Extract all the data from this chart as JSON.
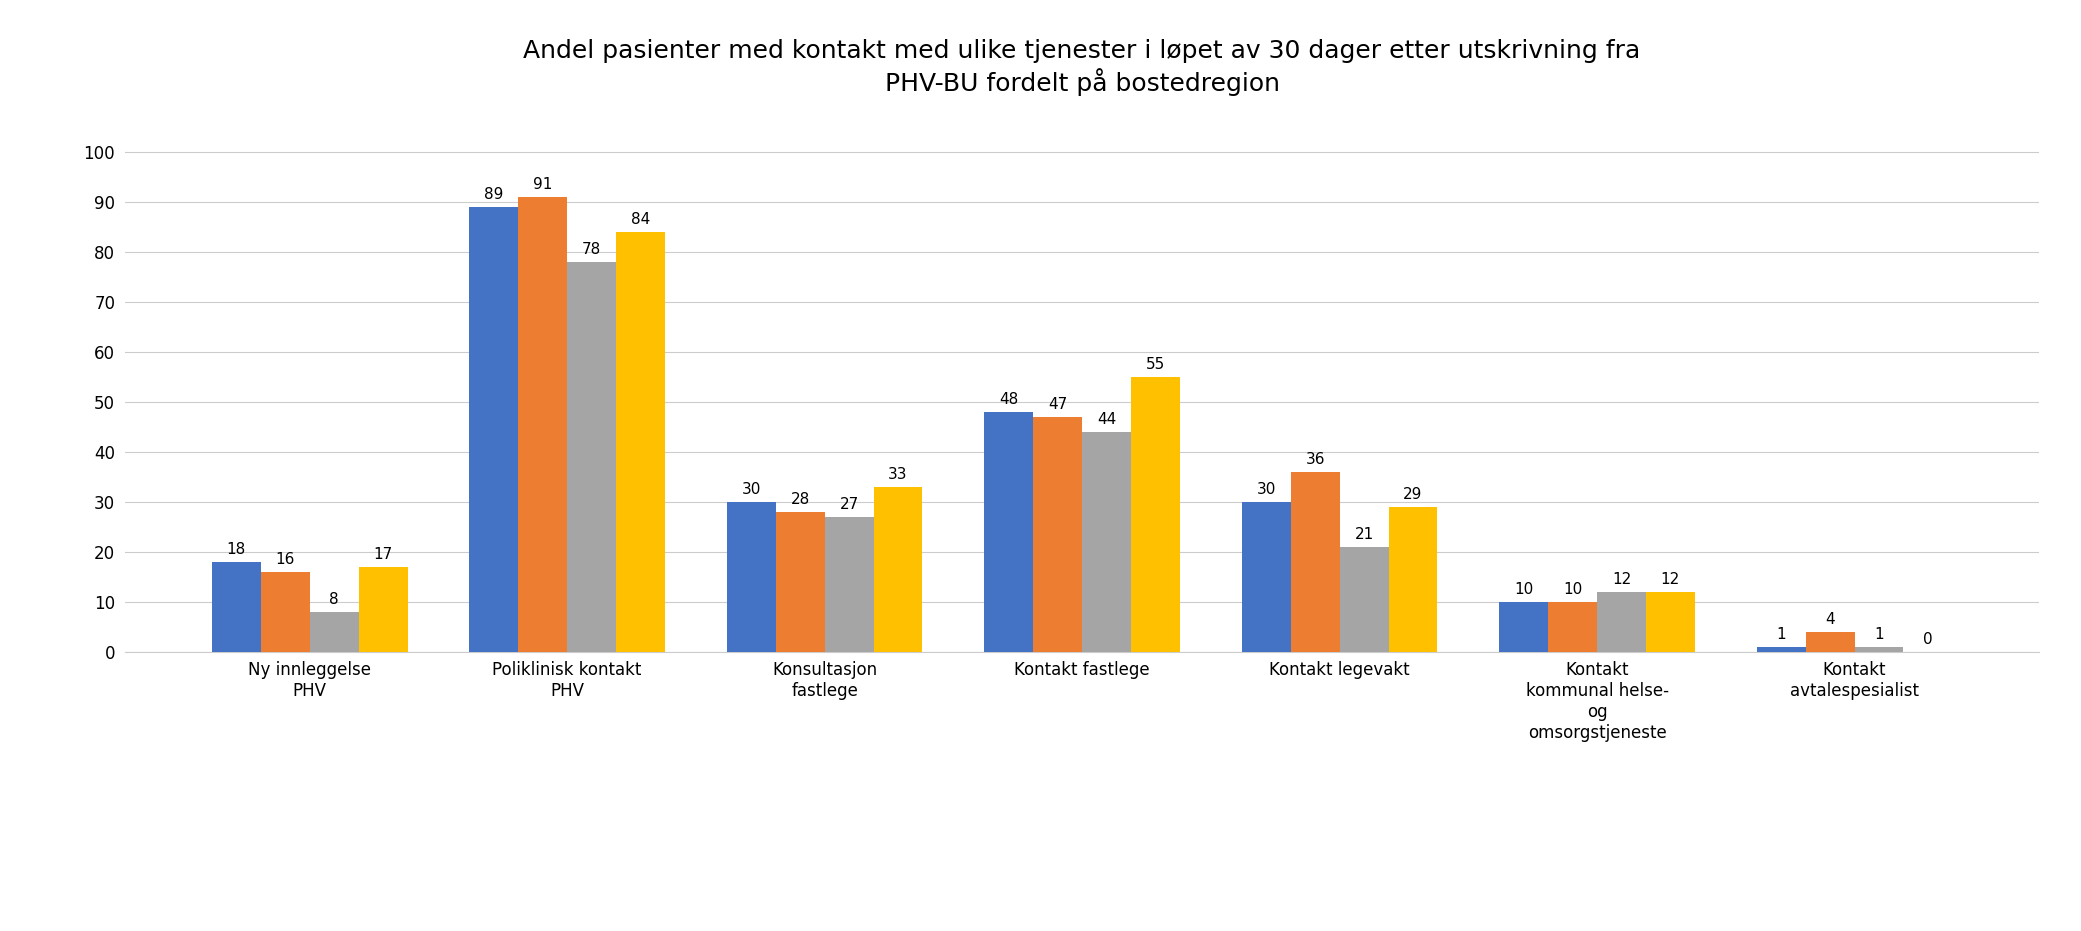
{
  "title": "Andel pasienter med kontakt med ulike tjenester i løpet av 30 dager etter utskrivning fra\nPHV-BU fordelt på bostedregion",
  "categories": [
    "Ny innleggelse\nPHV",
    "Poliklinisk kontakt\nPHV",
    "Konsultasjon\nfastlege",
    "Kontakt fastlege",
    "Kontakt legevakt",
    "Kontakt\nkommunal helse-\nog\nomsorgstjeneste",
    "Kontakt\navtalespesialist"
  ],
  "series": {
    "Helse Sør-Øst": [
      18,
      89,
      30,
      48,
      30,
      10,
      1
    ],
    "Helse Vest": [
      16,
      91,
      28,
      47,
      36,
      10,
      4
    ],
    "Helse Midt-Norge": [
      8,
      78,
      27,
      44,
      21,
      12,
      1
    ],
    "Helse Nord": [
      17,
      84,
      33,
      55,
      29,
      12,
      0
    ]
  },
  "colors": {
    "Helse Sør-Øst": "#4472C4",
    "Helse Vest": "#ED7D31",
    "Helse Midt-Norge": "#A5A5A5",
    "Helse Nord": "#FFC000"
  },
  "ylim": [
    0,
    108
  ],
  "yticks": [
    0,
    10,
    20,
    30,
    40,
    50,
    60,
    70,
    80,
    90,
    100
  ],
  "background_color": "#FFFFFF",
  "title_fontsize": 18,
  "bar_label_fontsize": 11,
  "axis_label_fontsize": 12,
  "legend_fontsize": 12,
  "bar_width": 0.19
}
